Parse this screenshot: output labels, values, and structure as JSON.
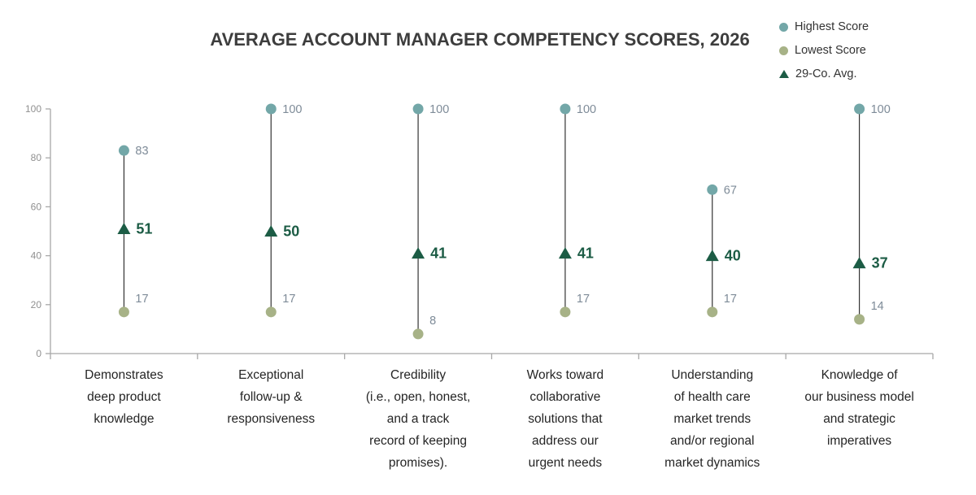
{
  "chart_data": {
    "type": "scatter",
    "subtype": "dumbbell-range",
    "title": "AVERAGE ACCOUNT MANAGER COMPETENCY SCORES, 2026",
    "categories": [
      "Demonstrates deep product knowledge",
      "Exceptional follow-up & responsiveness",
      "Credibility (i.e., open, honest, and a track record of keeping promises).",
      "Works toward collaborative solutions that address our urgent needs",
      "Understanding of health care market trends and/or regional market dynamics",
      "Knowledge of our business model and strategic imperatives"
    ],
    "category_lines": [
      [
        "Demonstrates",
        "deep product",
        "knowledge"
      ],
      [
        "Exceptional",
        "follow-up &",
        "responsiveness"
      ],
      [
        "Credibility",
        "(i.e., open, honest,",
        "and a track",
        "record of keeping",
        "promises)."
      ],
      [
        "Works toward",
        "collaborative",
        "solutions that",
        "address our",
        "urgent needs"
      ],
      [
        "Understanding",
        "of health care",
        "market trends",
        "and/or regional",
        "market dynamics"
      ],
      [
        "Knowledge of",
        "our business model",
        "and strategic",
        "imperatives"
      ]
    ],
    "series": [
      {
        "name": "Highest Score",
        "marker": "circle",
        "color": "#73a7a8",
        "values": [
          83,
          100,
          100,
          100,
          67,
          100
        ]
      },
      {
        "name": "Lowest Score",
        "marker": "circle",
        "color": "#a7b287",
        "values": [
          17,
          17,
          8,
          17,
          17,
          14
        ]
      },
      {
        "name": "29-Co. Avg.",
        "marker": "triangle",
        "color": "#1c5c45",
        "values": [
          51,
          50,
          41,
          41,
          40,
          37
        ]
      }
    ],
    "ylim": [
      0,
      100
    ],
    "yticks": [
      0,
      20,
      40,
      60,
      80,
      100
    ],
    "grid": false,
    "legend_position": "top-right",
    "colors": {
      "highest": "#73a7a8",
      "lowest": "#a7b287",
      "average": "#1c5c45",
      "value_label": "#7e8b98",
      "avg_value_label": "#1c5c45",
      "axis": "#a8a8a8",
      "tick_label": "#909090",
      "stem": "#333333",
      "title": "#3d3d3d",
      "category_label": "#252525"
    }
  }
}
